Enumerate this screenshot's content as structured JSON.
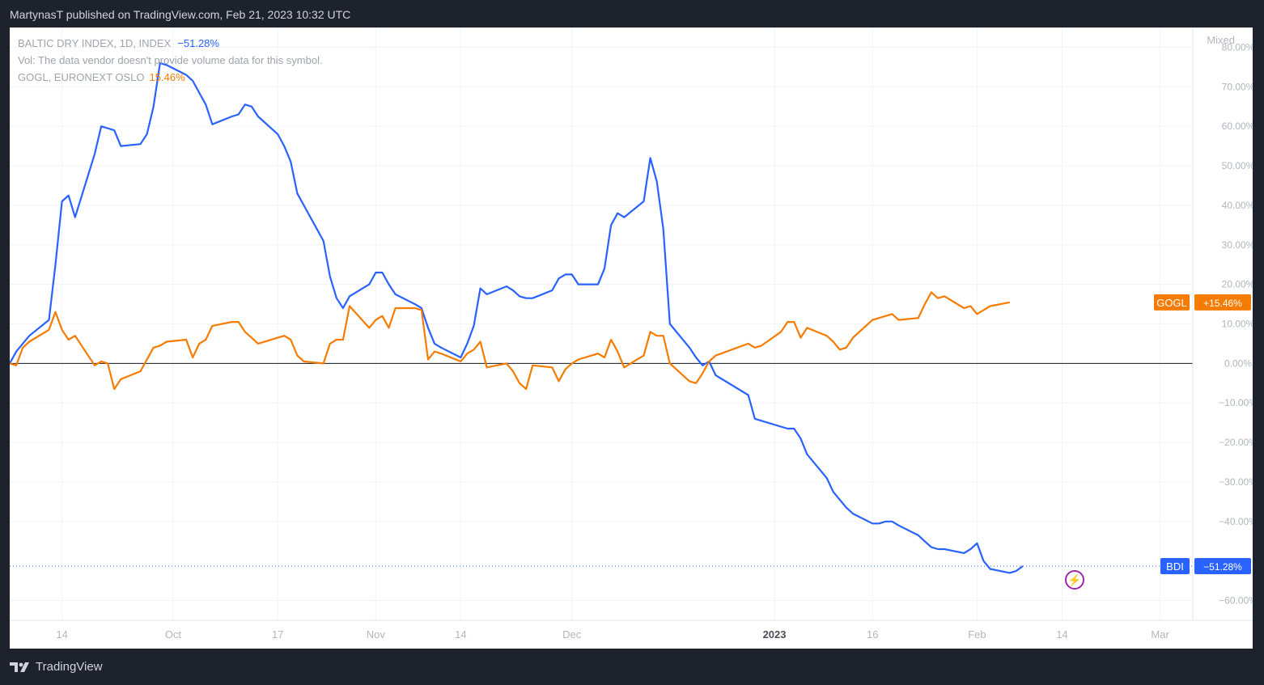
{
  "header": {
    "published": "MartynasT published on TradingView.com, Feb 21, 2023 10:32 UTC"
  },
  "legend": {
    "bdi_name": "BALTIC DRY INDEX, 1D, INDEX",
    "bdi_change": "−51.28%",
    "vol_note": "Vol: The data vendor doesn't provide volume data for this symbol.",
    "gogl_name": "GOGL, EURONEXT OSLO",
    "gogl_change": "15.46%"
  },
  "scale_mode": "Mixed",
  "footer": {
    "brand": "TradingView"
  },
  "colors": {
    "bdi": "#2962ff",
    "gogl": "#f57c00",
    "axis_text": "#b2b5be",
    "grid": "#f0f3fa"
  },
  "chart_data": {
    "type": "line",
    "y_unit": "%",
    "ylim": [
      -65,
      85
    ],
    "y_ticks": [
      {
        "v": 80,
        "label": "80.00%"
      },
      {
        "v": 70,
        "label": "70.00%"
      },
      {
        "v": 60,
        "label": "60.00%"
      },
      {
        "v": 50,
        "label": "50.00%"
      },
      {
        "v": 40,
        "label": "40.00%"
      },
      {
        "v": 30,
        "label": "30.00%"
      },
      {
        "v": 20,
        "label": "20.00%"
      },
      {
        "v": 10,
        "label": "10.00%"
      },
      {
        "v": 0,
        "label": "0.00%"
      },
      {
        "v": -10,
        "label": "−10.00%"
      },
      {
        "v": -20,
        "label": "−20.00%"
      },
      {
        "v": -30,
        "label": "−30.00%"
      },
      {
        "v": -40,
        "label": "−40.00%"
      },
      {
        "v": -60,
        "label": "−60.00%"
      }
    ],
    "x_ticks": [
      {
        "date": "2022-09-14",
        "label": "14",
        "bold": false
      },
      {
        "date": "2022-10-01",
        "label": "Oct",
        "bold": false
      },
      {
        "date": "2022-10-17",
        "label": "17",
        "bold": false
      },
      {
        "date": "2022-11-01",
        "label": "Nov",
        "bold": false
      },
      {
        "date": "2022-11-14",
        "label": "14",
        "bold": false
      },
      {
        "date": "2022-12-01",
        "label": "Dec",
        "bold": false
      },
      {
        "date": "2023-01-01",
        "label": "2023",
        "bold": true
      },
      {
        "date": "2023-01-16",
        "label": "16",
        "bold": false
      },
      {
        "date": "2023-02-01",
        "label": "Feb",
        "bold": false
      },
      {
        "date": "2023-02-14",
        "label": "14",
        "bold": false
      },
      {
        "date": "2023-03-01",
        "label": "Mar",
        "bold": false
      }
    ],
    "x_range": [
      "2022-09-06",
      "2023-03-06"
    ],
    "series": [
      {
        "name": "BALTIC DRY INDEX",
        "badge": "BDI",
        "badge_value": "−51.28%",
        "last_value": -51.28,
        "points": [
          [
            "2022-09-06",
            0
          ],
          [
            "2022-09-07",
            3
          ],
          [
            "2022-09-09",
            7
          ],
          [
            "2022-09-12",
            11
          ],
          [
            "2022-09-13",
            25
          ],
          [
            "2022-09-14",
            41
          ],
          [
            "2022-09-15",
            42.5
          ],
          [
            "2022-09-16",
            37
          ],
          [
            "2022-09-19",
            53
          ],
          [
            "2022-09-20",
            60
          ],
          [
            "2022-09-22",
            59
          ],
          [
            "2022-09-23",
            55
          ],
          [
            "2022-09-26",
            55.5
          ],
          [
            "2022-09-27",
            58
          ],
          [
            "2022-09-28",
            65
          ],
          [
            "2022-09-29",
            76
          ],
          [
            "2022-09-30",
            75.5
          ],
          [
            "2022-10-03",
            73
          ],
          [
            "2022-10-04",
            71.5
          ],
          [
            "2022-10-05",
            68.5
          ],
          [
            "2022-10-06",
            65.5
          ],
          [
            "2022-10-07",
            60.5
          ],
          [
            "2022-10-10",
            62.5
          ],
          [
            "2022-10-11",
            63
          ],
          [
            "2022-10-12",
            65.5
          ],
          [
            "2022-10-13",
            65
          ],
          [
            "2022-10-14",
            62.5
          ],
          [
            "2022-10-17",
            58
          ],
          [
            "2022-10-18",
            55
          ],
          [
            "2022-10-19",
            51
          ],
          [
            "2022-10-20",
            43
          ],
          [
            "2022-10-24",
            31
          ],
          [
            "2022-10-25",
            22
          ],
          [
            "2022-10-26",
            16.5
          ],
          [
            "2022-10-27",
            14
          ],
          [
            "2022-10-28",
            17
          ],
          [
            "2022-10-31",
            20
          ],
          [
            "2022-11-01",
            23
          ],
          [
            "2022-11-02",
            23
          ],
          [
            "2022-11-03",
            20
          ],
          [
            "2022-11-04",
            17.5
          ],
          [
            "2022-11-07",
            15
          ],
          [
            "2022-11-08",
            14
          ],
          [
            "2022-11-09",
            9
          ],
          [
            "2022-11-10",
            5
          ],
          [
            "2022-11-11",
            4
          ],
          [
            "2022-11-14",
            1.5
          ],
          [
            "2022-11-15",
            5
          ],
          [
            "2022-11-16",
            9.5
          ],
          [
            "2022-11-17",
            19
          ],
          [
            "2022-11-18",
            17.5
          ],
          [
            "2022-11-21",
            19.5
          ],
          [
            "2022-11-22",
            18.5
          ],
          [
            "2022-11-23",
            17
          ],
          [
            "2022-11-24",
            16.5
          ],
          [
            "2022-11-25",
            16.5
          ],
          [
            "2022-11-28",
            18.5
          ],
          [
            "2022-11-29",
            21.5
          ],
          [
            "2022-11-30",
            22.5
          ],
          [
            "2022-12-01",
            22.5
          ],
          [
            "2022-12-02",
            20
          ],
          [
            "2022-12-05",
            20
          ],
          [
            "2022-12-06",
            24
          ],
          [
            "2022-12-07",
            35
          ],
          [
            "2022-12-08",
            38
          ],
          [
            "2022-12-09",
            37
          ],
          [
            "2022-12-12",
            41
          ],
          [
            "2022-12-13",
            52
          ],
          [
            "2022-12-14",
            46
          ],
          [
            "2022-12-15",
            34
          ],
          [
            "2022-12-16",
            10
          ],
          [
            "2022-12-19",
            4
          ],
          [
            "2022-12-20",
            1.5
          ],
          [
            "2022-12-21",
            -0.5
          ],
          [
            "2022-12-22",
            0.5
          ],
          [
            "2022-12-23",
            -3
          ],
          [
            "2022-12-28",
            -8
          ],
          [
            "2022-12-29",
            -14
          ],
          [
            "2023-01-03",
            -16.5
          ],
          [
            "2023-01-04",
            -16.5
          ],
          [
            "2023-01-05",
            -19
          ],
          [
            "2023-01-06",
            -23
          ],
          [
            "2023-01-09",
            -29
          ],
          [
            "2023-01-10",
            -32.5
          ],
          [
            "2023-01-11",
            -34.5
          ],
          [
            "2023-01-12",
            -36.5
          ],
          [
            "2023-01-13",
            -38
          ],
          [
            "2023-01-16",
            -40.5
          ],
          [
            "2023-01-17",
            -40.5
          ],
          [
            "2023-01-18",
            -40
          ],
          [
            "2023-01-19",
            -40
          ],
          [
            "2023-01-20",
            -41
          ],
          [
            "2023-01-23",
            -43.5
          ],
          [
            "2023-01-24",
            -45
          ],
          [
            "2023-01-25",
            -46.5
          ],
          [
            "2023-01-26",
            -47
          ],
          [
            "2023-01-27",
            -47
          ],
          [
            "2023-01-30",
            -48
          ],
          [
            "2023-01-31",
            -47
          ],
          [
            "2023-02-01",
            -45.5
          ],
          [
            "2023-02-02",
            -50
          ],
          [
            "2023-02-03",
            -52
          ],
          [
            "2023-02-06",
            -53
          ],
          [
            "2023-02-07",
            -52.5
          ],
          [
            "2023-02-08",
            -51.28
          ]
        ]
      },
      {
        "name": "GOGL",
        "badge": "GOGL",
        "badge_value": "+15.46%",
        "last_value": 15.46,
        "points": [
          [
            "2022-09-06",
            0
          ],
          [
            "2022-09-07",
            -0.5
          ],
          [
            "2022-09-08",
            4
          ],
          [
            "2022-09-09",
            5.5
          ],
          [
            "2022-09-12",
            8.5
          ],
          [
            "2022-09-13",
            13
          ],
          [
            "2022-09-14",
            8.5
          ],
          [
            "2022-09-15",
            6
          ],
          [
            "2022-09-16",
            7
          ],
          [
            "2022-09-19",
            -0.5
          ],
          [
            "2022-09-20",
            0.5
          ],
          [
            "2022-09-21",
            0
          ],
          [
            "2022-09-22",
            -6.5
          ],
          [
            "2022-09-23",
            -4
          ],
          [
            "2022-09-26",
            -2
          ],
          [
            "2022-09-27",
            1
          ],
          [
            "2022-09-28",
            4
          ],
          [
            "2022-09-29",
            4.5
          ],
          [
            "2022-09-30",
            5.5
          ],
          [
            "2022-10-03",
            6
          ],
          [
            "2022-10-04",
            1.5
          ],
          [
            "2022-10-05",
            5
          ],
          [
            "2022-10-06",
            6
          ],
          [
            "2022-10-07",
            9.5
          ],
          [
            "2022-10-10",
            10.5
          ],
          [
            "2022-10-11",
            10.5
          ],
          [
            "2022-10-12",
            8
          ],
          [
            "2022-10-13",
            6.5
          ],
          [
            "2022-10-14",
            5
          ],
          [
            "2022-10-17",
            6.5
          ],
          [
            "2022-10-18",
            7
          ],
          [
            "2022-10-19",
            6
          ],
          [
            "2022-10-20",
            2
          ],
          [
            "2022-10-21",
            0.5
          ],
          [
            "2022-10-24",
            0
          ],
          [
            "2022-10-25",
            5
          ],
          [
            "2022-10-26",
            6
          ],
          [
            "2022-10-27",
            6
          ],
          [
            "2022-10-28",
            14.5
          ],
          [
            "2022-10-31",
            9
          ],
          [
            "2022-11-01",
            11
          ],
          [
            "2022-11-02",
            12
          ],
          [
            "2022-11-03",
            9
          ],
          [
            "2022-11-04",
            14
          ],
          [
            "2022-11-07",
            14
          ],
          [
            "2022-11-08",
            13.5
          ],
          [
            "2022-11-09",
            1
          ],
          [
            "2022-11-10",
            3
          ],
          [
            "2022-11-11",
            2.5
          ],
          [
            "2022-11-14",
            0.5
          ],
          [
            "2022-11-15",
            2.5
          ],
          [
            "2022-11-16",
            3.5
          ],
          [
            "2022-11-17",
            5.5
          ],
          [
            "2022-11-18",
            -1
          ],
          [
            "2022-11-21",
            0
          ],
          [
            "2022-11-22",
            -2
          ],
          [
            "2022-11-23",
            -5
          ],
          [
            "2022-11-24",
            -6.5
          ],
          [
            "2022-11-25",
            -0.5
          ],
          [
            "2022-11-28",
            -1
          ],
          [
            "2022-11-29",
            -4.5
          ],
          [
            "2022-11-30",
            -1.5
          ],
          [
            "2022-12-01",
            0
          ],
          [
            "2022-12-02",
            1
          ],
          [
            "2022-12-05",
            2.5
          ],
          [
            "2022-12-06",
            1.5
          ],
          [
            "2022-12-07",
            6
          ],
          [
            "2022-12-08",
            3
          ],
          [
            "2022-12-09",
            -1
          ],
          [
            "2022-12-12",
            2
          ],
          [
            "2022-12-13",
            8
          ],
          [
            "2022-12-14",
            7
          ],
          [
            "2022-12-15",
            7
          ],
          [
            "2022-12-16",
            0
          ],
          [
            "2022-12-19",
            -4.5
          ],
          [
            "2022-12-20",
            -5
          ],
          [
            "2022-12-21",
            -2.5
          ],
          [
            "2022-12-22",
            0.5
          ],
          [
            "2022-12-23",
            2
          ],
          [
            "2022-12-28",
            5
          ],
          [
            "2022-12-29",
            4
          ],
          [
            "2022-12-30",
            4.5
          ],
          [
            "2023-01-02",
            8
          ],
          [
            "2023-01-03",
            10.5
          ],
          [
            "2023-01-04",
            10.5
          ],
          [
            "2023-01-05",
            6.5
          ],
          [
            "2023-01-06",
            9
          ],
          [
            "2023-01-09",
            7
          ],
          [
            "2023-01-10",
            5.5
          ],
          [
            "2023-01-11",
            3.5
          ],
          [
            "2023-01-12",
            4
          ],
          [
            "2023-01-13",
            6.5
          ],
          [
            "2023-01-16",
            11
          ],
          [
            "2023-01-17",
            11.5
          ],
          [
            "2023-01-18",
            12
          ],
          [
            "2023-01-19",
            12.5
          ],
          [
            "2023-01-20",
            11
          ],
          [
            "2023-01-23",
            11.5
          ],
          [
            "2023-01-24",
            15
          ],
          [
            "2023-01-25",
            18
          ],
          [
            "2023-01-26",
            16.5
          ],
          [
            "2023-01-27",
            17
          ],
          [
            "2023-01-30",
            14
          ],
          [
            "2023-01-31",
            14.5
          ],
          [
            "2023-02-01",
            12.5
          ],
          [
            "2023-02-02",
            13.5
          ],
          [
            "2023-02-03",
            14.5
          ],
          [
            "2023-02-06",
            15.46
          ]
        ]
      }
    ],
    "grid": true
  }
}
